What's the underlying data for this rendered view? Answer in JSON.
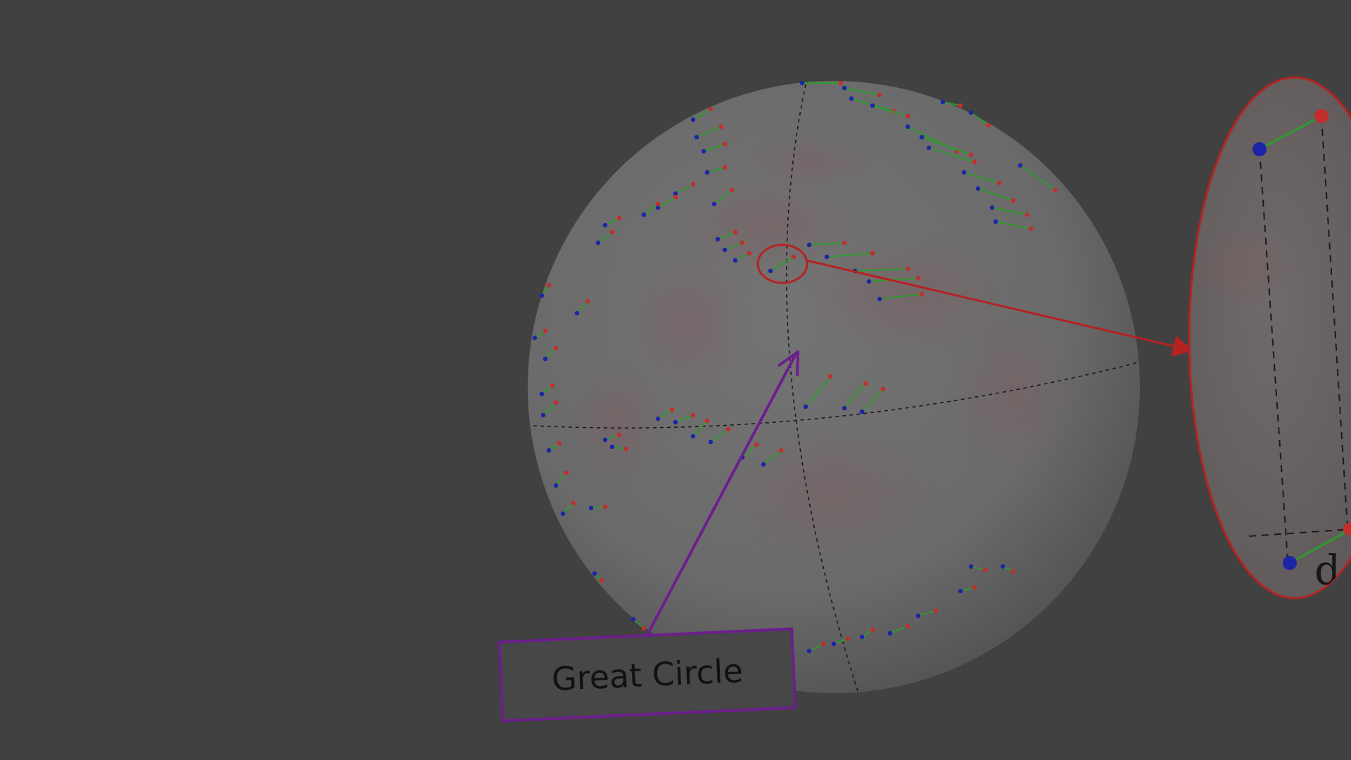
{
  "labels": {
    "great_circle": "Great Circle",
    "distance_symbol": "d"
  },
  "colors": {
    "background": "#414141",
    "sphere_fill": "#6e6e6e",
    "pair_start_point": "#1d24a8",
    "pair_end_point": "#c42d2d",
    "pair_link": "#2f9a2f",
    "zoom_highlight": "#b52222",
    "great_circle_callout": "#6c1f8c",
    "guide_lines": "#1b1b1b"
  },
  "icons": {
    "zoom_circle": "circle-outline-icon",
    "zoom_arrow": "arrow-right-icon",
    "callout_arrow": "arrow-up-right-icon"
  }
}
